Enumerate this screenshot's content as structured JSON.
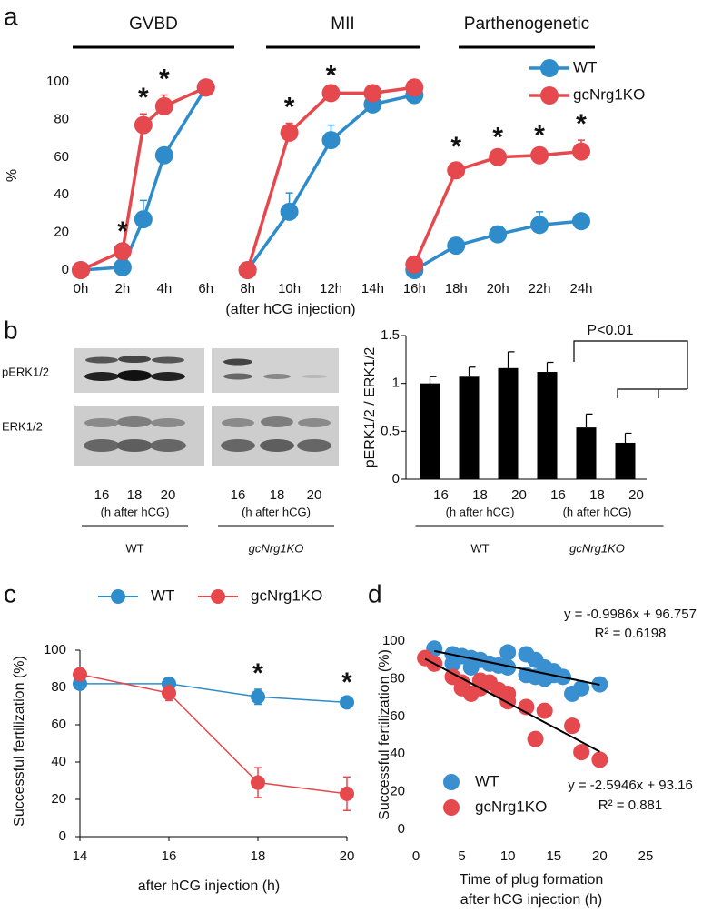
{
  "chart_data": [
    {
      "type": "line",
      "panel_label": "a",
      "phases": [
        "GVBD",
        "MII",
        "Parthenogenetic"
      ],
      "ylabel": "%",
      "xlabel": "(after hCG injection)",
      "x": [
        0,
        2,
        3,
        4,
        6,
        null,
        8,
        10,
        12,
        14,
        16,
        null,
        16,
        18,
        20,
        22,
        24
      ],
      "xlim": [
        0,
        24
      ],
      "xticks": [
        {
          "value": 0,
          "label": "0h"
        },
        {
          "value": 2,
          "label": "2h"
        },
        {
          "value": 4,
          "label": "4h"
        },
        {
          "value": 6,
          "label": "6h"
        },
        {
          "value": 8,
          "label": "8h"
        },
        {
          "value": 10,
          "label": "10h"
        },
        {
          "value": 12,
          "label": "12h"
        },
        {
          "value": 14,
          "label": "14h"
        },
        {
          "value": 16,
          "label": "16h"
        },
        {
          "value": 18,
          "label": "18h"
        },
        {
          "value": 20,
          "label": "20h"
        },
        {
          "value": 22,
          "label": "22h"
        },
        {
          "value": 24,
          "label": "24h"
        }
      ],
      "ylim": [
        0,
        100
      ],
      "yticks": [
        0,
        20,
        40,
        60,
        80,
        100
      ],
      "series": [
        {
          "name": "WT",
          "color": "#2e8ccb",
          "values": [
            0,
            1.5,
            27,
            61,
            97,
            null,
            0,
            31,
            69,
            88,
            93,
            null,
            0,
            13,
            19,
            24,
            26
          ],
          "errors": [
            0,
            1,
            10,
            2,
            1,
            null,
            0,
            10,
            8,
            3,
            2,
            null,
            0,
            2,
            2,
            7,
            2
          ]
        },
        {
          "name": "gcNrg1KO",
          "color": "#e5484d",
          "values": [
            0,
            10,
            77,
            87,
            97,
            null,
            0,
            73,
            94,
            94,
            97,
            null,
            3,
            53,
            60,
            61,
            63
          ],
          "errors": [
            0,
            2,
            6,
            6,
            2,
            null,
            0,
            5,
            1,
            1,
            2,
            null,
            1,
            4,
            2,
            2,
            6
          ]
        }
      ],
      "error_bars": "up",
      "significance": {
        "label": "*",
        "x": [
          2,
          3,
          4,
          10,
          12,
          18,
          20,
          22,
          24
        ]
      },
      "legend": "upper right"
    },
    {
      "type": "blot",
      "panel_label": "b",
      "row_labels": [
        "pERK1/2",
        "ERK1/2"
      ],
      "lanes": [
        "16",
        "18",
        "20",
        "16",
        "18",
        "20"
      ],
      "lane_units": [
        "(h after hCG)",
        "(h after hCG)"
      ],
      "groups": [
        "WT",
        "gcNrg1KO"
      ]
    },
    {
      "type": "bar",
      "ylabel": "pERK1/2 / ERK1/2",
      "categories": [
        "16",
        "18",
        "20",
        "16",
        "18",
        "20"
      ],
      "values": [
        1.0,
        1.07,
        1.16,
        1.12,
        0.54,
        0.38
      ],
      "errors": [
        0.07,
        0.1,
        0.17,
        0.1,
        0.14,
        0.1
      ],
      "color": "#000000",
      "ylim": [
        0,
        1.5
      ],
      "yticks": [
        0,
        0.5,
        1,
        1.5
      ],
      "axis_lines": true,
      "category_units": [
        "(h after hCG)",
        "(h after hCG)"
      ],
      "groups": [
        "WT",
        "gcNrg1KO"
      ],
      "annotation": "P<0.01"
    },
    {
      "type": "line",
      "panel_label": "c",
      "ylabel": "Successful fertilization (%)",
      "xlabel": "after hCG injection (h)",
      "x": [
        14,
        16,
        18,
        20
      ],
      "xlim": [
        14,
        20
      ],
      "xticks": [
        14,
        16,
        18,
        20
      ],
      "ylim": [
        0,
        100
      ],
      "yticks": [
        0,
        20,
        40,
        60,
        80,
        100
      ],
      "axis_lines": true,
      "series": [
        {
          "name": "WT",
          "color": "#2e8ccb",
          "values": [
            82,
            82,
            75,
            72
          ],
          "errors": [
            0,
            3,
            4,
            2
          ]
        },
        {
          "name": "gcNrg1KO",
          "color": "#e5484d",
          "values": [
            87,
            77,
            29,
            23
          ],
          "errors": [
            3,
            4,
            8,
            9
          ]
        }
      ],
      "error_bars": "both",
      "significance": {
        "label": "*",
        "x": [
          18,
          20
        ]
      },
      "legend": "top"
    },
    {
      "type": "scatter",
      "panel_label": "d",
      "ylabel": "Successful fertilization (%)",
      "xlabel": [
        "Time of plug formation",
        "after hCG injection (h)"
      ],
      "xlim": [
        0,
        25
      ],
      "xticks": [
        0,
        5,
        10,
        15,
        20,
        25
      ],
      "ylim": [
        0,
        100
      ],
      "yticks": [
        0,
        20,
        40,
        60,
        80,
        100
      ],
      "series": [
        {
          "name": "WT",
          "color": "#3a8fd0",
          "x": [
            2,
            4,
            4,
            5,
            6,
            6,
            7,
            8,
            9,
            10,
            10,
            12,
            12,
            13,
            13,
            14,
            14,
            15,
            15,
            16,
            17,
            18,
            20
          ],
          "values": [
            96,
            93,
            88,
            92,
            86,
            91,
            90,
            88,
            87,
            94,
            86,
            93,
            82,
            90,
            81,
            86,
            80,
            84,
            82,
            81,
            72,
            75,
            77
          ]
        },
        {
          "name": "gcNrg1KO",
          "color": "#e5484d",
          "x": [
            1,
            2,
            4,
            5,
            5,
            6,
            7,
            7,
            8,
            9,
            10,
            10,
            12,
            13,
            14,
            17,
            18,
            20
          ],
          "values": [
            91,
            88,
            81,
            75,
            78,
            72,
            79,
            75,
            78,
            74,
            72,
            68,
            65,
            48,
            63,
            55,
            41,
            37
          ]
        }
      ],
      "fits": [
        {
          "equation": "y = -0.9986x + 96.757",
          "r2": "R² = 0.6198",
          "slope": -0.9986,
          "intercept": 96.757
        },
        {
          "equation": "y = -2.5946x + 93.16",
          "r2": "R² = 0.881",
          "slope": -2.5946,
          "intercept": 93.16
        }
      ],
      "legend": "lower left"
    }
  ]
}
